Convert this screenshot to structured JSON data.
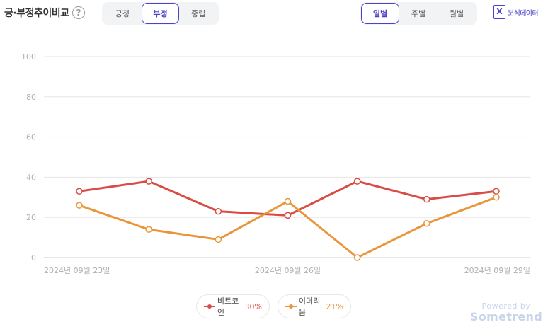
{
  "header": {
    "title": "긍·부정추이비교",
    "help_icon": "question-circle-icon",
    "sentiment_tabs": [
      "긍정",
      "부정",
      "중립"
    ],
    "sentiment_active": "부정",
    "period_tabs": [
      "일별",
      "주별",
      "월별"
    ],
    "period_active": "일별",
    "export_label": "분석데이터",
    "export_icon": "excel-icon"
  },
  "chart_data": {
    "type": "line",
    "x": [
      "2024-09-23",
      "2024-09-24",
      "2024-09-25",
      "2024-09-26",
      "2024-09-27",
      "2024-09-28",
      "2024-09-29"
    ],
    "x_tick_labels": [
      {
        "index": 0,
        "label": "2024년 09월 23일"
      },
      {
        "index": 3,
        "label": "2024년 09월 26일"
      },
      {
        "index": 6,
        "label": "2024년 09월 29일"
      }
    ],
    "y_ticks": [
      0,
      20,
      40,
      60,
      80,
      100
    ],
    "ylim": [
      0,
      100
    ],
    "grid": true,
    "series": [
      {
        "name": "비트코인",
        "share": "30%",
        "color": "#d94c44",
        "values": [
          33,
          38,
          23,
          21,
          38,
          29,
          33
        ]
      },
      {
        "name": "이더리움",
        "share": "21%",
        "color": "#e9963a",
        "values": [
          26,
          14,
          9,
          28,
          0,
          17,
          30
        ]
      }
    ],
    "legend_position": "bottom"
  },
  "footer": {
    "powered_by": "Powered by",
    "brand": "Sometrend"
  }
}
